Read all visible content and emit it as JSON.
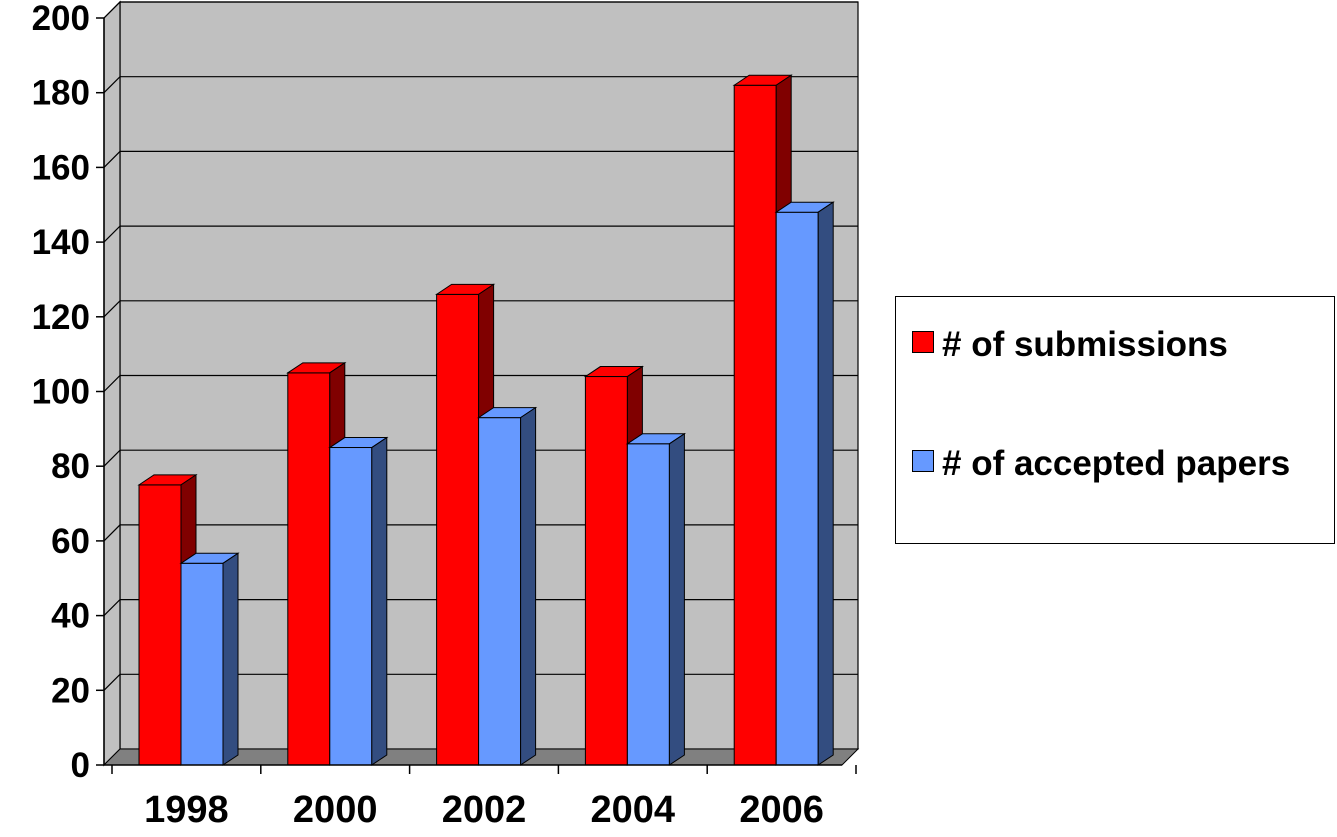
{
  "chart_data": {
    "type": "bar",
    "style": "3d-clustered",
    "categories": [
      "1998",
      "2000",
      "2002",
      "2004",
      "2006"
    ],
    "series": [
      {
        "name": "# of submissions",
        "values": [
          75,
          105,
          126,
          104,
          182
        ],
        "color": "#ff0000",
        "side_color": "#800000"
      },
      {
        "name": "# of accepted papers",
        "values": [
          54,
          85,
          93,
          86,
          148
        ],
        "color": "#6699ff",
        "side_color": "#334d80"
      }
    ],
    "title": "",
    "xlabel": "",
    "ylabel": "",
    "ylim": [
      0,
      200
    ],
    "yticks": [
      "0",
      "20",
      "40",
      "60",
      "80",
      "100",
      "120",
      "140",
      "160",
      "180",
      "200"
    ],
    "grid": true,
    "legend_position": "right",
    "plot_background": "#c0c0c0",
    "floor_color": "#808080"
  }
}
